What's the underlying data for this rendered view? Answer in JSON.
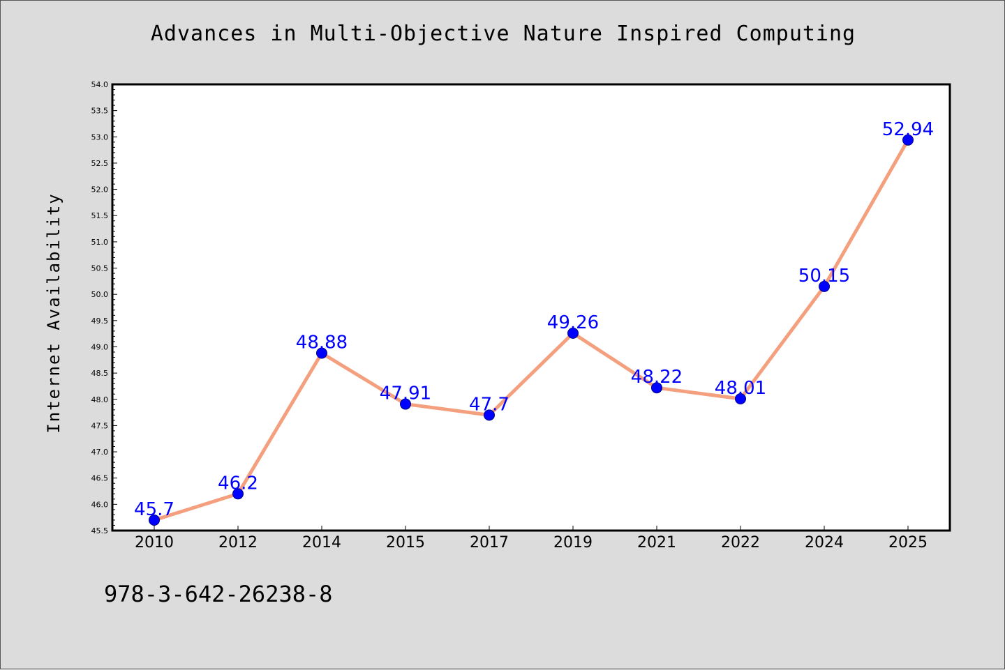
{
  "chart_data": {
    "type": "line",
    "title": "Advances in Multi-Objective Nature Inspired Computing",
    "xlabel": "",
    "ylabel": "Internet Availability",
    "categories": [
      "2010",
      "2012",
      "2014",
      "2015",
      "2017",
      "2019",
      "2021",
      "2022",
      "2024",
      "2025"
    ],
    "values": [
      45.7,
      46.2,
      48.88,
      47.91,
      47.7,
      49.26,
      48.22,
      48.01,
      50.15,
      52.94
    ],
    "data_labels": [
      "45.7",
      "46.2",
      "48.88",
      "47.91",
      "47.7",
      "49.26",
      "48.22",
      "48.01",
      "50.15",
      "52.94"
    ],
    "ylim": [
      45.5,
      54.0
    ],
    "y_ticks": [
      "45.5",
      "46.0",
      "46.5",
      "47.0",
      "47.5",
      "48.0",
      "48.5",
      "49.0",
      "49.5",
      "50.0",
      "50.5",
      "51.0",
      "51.5",
      "52.0",
      "52.5",
      "53.0",
      "53.5",
      "54.0"
    ],
    "grid": false,
    "line_color": "#f4a07f",
    "marker_color": "#0000ff",
    "label_color": "#0000ff",
    "background_color": "#dcdcdc",
    "plot_background": "#ffffff"
  },
  "footer": {
    "isbn": "978-3-642-26238-8"
  }
}
